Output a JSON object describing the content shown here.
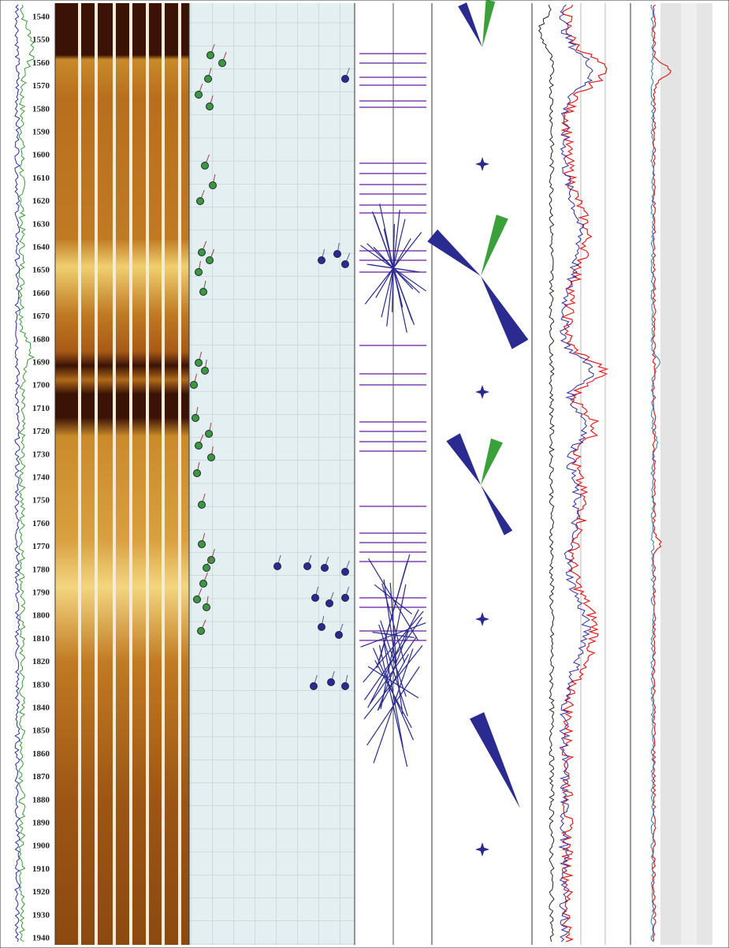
{
  "depth_track": {
    "labels": [
      "1540",
      "1550",
      "1560",
      "1570",
      "1580",
      "1590",
      "1600",
      "1610",
      "1620",
      "1630",
      "1640",
      "1650",
      "1660",
      "1670",
      "1680",
      "1690",
      "1700",
      "1710",
      "1720",
      "1730",
      "1740",
      "1750",
      "1760",
      "1770",
      "1780",
      "1790",
      "1800",
      "1810",
      "1820",
      "1830",
      "1840",
      "1850",
      "1860",
      "1870",
      "1880",
      "1890",
      "1900",
      "1910",
      "1920",
      "1930",
      "1940"
    ]
  }
}
